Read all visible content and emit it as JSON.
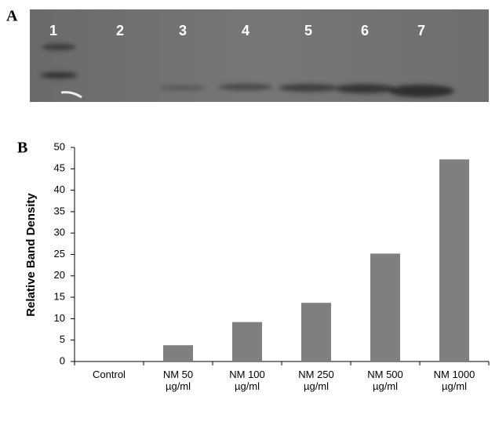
{
  "panel_labels": [
    "A",
    "B"
  ],
  "gel": {
    "lanes": [
      "1",
      "2",
      "3",
      "4",
      "5",
      "6",
      "7"
    ]
  },
  "chart_data": {
    "type": "bar",
    "y_label": "Relative Band Density",
    "categories": [
      "Control",
      "NM 50 µg/ml",
      "NM 100 µg/ml",
      "NM 250 µg/ml",
      "NM 500 µg/ml",
      "NM 1000 µg/ml"
    ],
    "values": [
      0,
      3.8,
      9.2,
      13.7,
      25.2,
      47.2
    ],
    "color": "#7f7f7f",
    "ylim": [
      0,
      50
    ],
    "yticks": [
      0,
      5,
      10,
      15,
      20,
      25,
      30,
      35,
      40,
      45,
      50
    ]
  }
}
